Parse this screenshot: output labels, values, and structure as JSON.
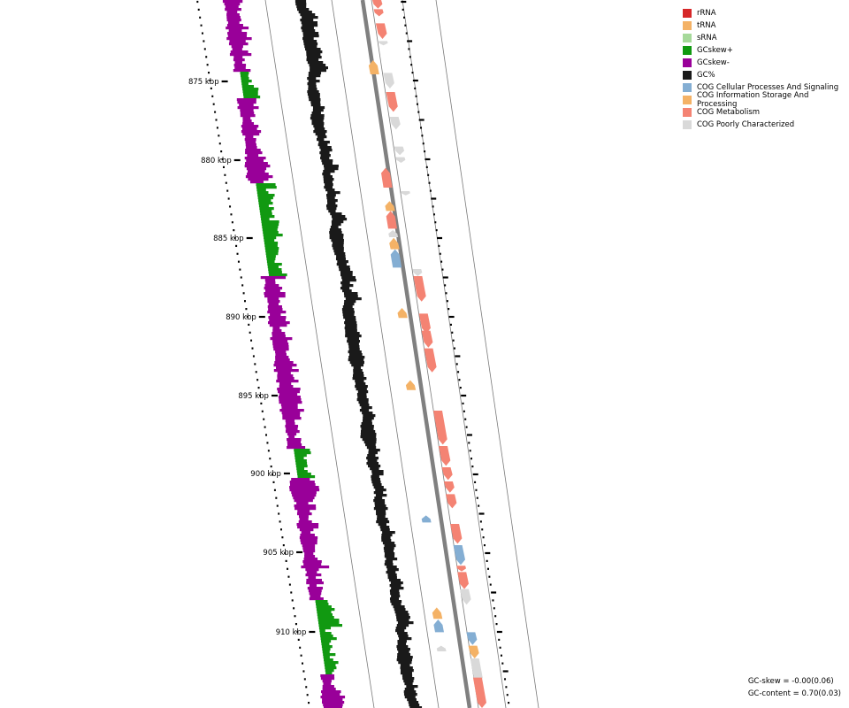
{
  "ticks": [
    "875 kbp",
    "880 kbp",
    "885 kbp",
    "890 kbp",
    "895 kbp",
    "900 kbp",
    "905 kbp",
    "910 kbp"
  ],
  "legend": [
    {
      "label": "rRNA",
      "color": "#d62728"
    },
    {
      "label": "tRNA",
      "color": "#f4b266"
    },
    {
      "label": "sRNA",
      "color": "#a6d99a"
    },
    {
      "label": "GCskew+",
      "color": "#119911"
    },
    {
      "label": "GCskew-",
      "color": "#990099"
    },
    {
      "label": "GC%",
      "color": "#1a1a1a"
    },
    {
      "label": "COG Cellular Processes And Signaling",
      "color": "#84aed3"
    },
    {
      "label": "COG Information Storage And Processing",
      "color": "#f4b266"
    },
    {
      "label": "COG Metabolism",
      "color": "#f48373"
    },
    {
      "label": "COG Poorly Characterized",
      "color": "#d9d9d9"
    }
  ],
  "stats": {
    "gc_skew": "GC-skew = -0.00(0.06)",
    "gc_content": "GC-content = 0.70(0.03)"
  },
  "features": [
    {
      "t": 0.0,
      "len": 0.012,
      "cat": "metabolism",
      "strand": 1
    },
    {
      "t": 0.013,
      "len": 0.01,
      "cat": "metabolism",
      "strand": 1
    },
    {
      "t": 0.033,
      "len": 0.022,
      "cat": "metabolism",
      "strand": 1
    },
    {
      "t": 0.058,
      "len": 0.006,
      "cat": "poor",
      "strand": 1
    },
    {
      "t": 0.085,
      "len": 0.02,
      "cat": "info",
      "strand": -1
    },
    {
      "t": 0.103,
      "len": 0.022,
      "cat": "poor",
      "strand": 1
    },
    {
      "t": 0.13,
      "len": 0.028,
      "cat": "metabolism",
      "strand": 1
    },
    {
      "t": 0.165,
      "len": 0.018,
      "cat": "poor",
      "strand": 1
    },
    {
      "t": 0.207,
      "len": 0.012,
      "cat": "poor",
      "strand": 1
    },
    {
      "t": 0.222,
      "len": 0.008,
      "cat": "poor",
      "strand": 1
    },
    {
      "t": 0.237,
      "len": 0.028,
      "cat": "metabolism",
      "strand": -1
    },
    {
      "t": 0.27,
      "len": 0.006,
      "cat": "poor",
      "strand": 1
    },
    {
      "t": 0.284,
      "len": 0.014,
      "cat": "info",
      "strand": -1
    },
    {
      "t": 0.298,
      "len": 0.025,
      "cat": "metabolism",
      "strand": -1
    },
    {
      "t": 0.325,
      "len": 0.01,
      "cat": "poor",
      "strand": -1
    },
    {
      "t": 0.336,
      "len": 0.016,
      "cat": "info",
      "strand": -1
    },
    {
      "t": 0.352,
      "len": 0.026,
      "cat": "cellular",
      "strand": -1
    },
    {
      "t": 0.38,
      "len": 0.01,
      "cat": "poor",
      "strand": 1
    },
    {
      "t": 0.39,
      "len": 0.036,
      "cat": "metabolism",
      "strand": 1
    },
    {
      "t": 0.435,
      "len": 0.014,
      "cat": "info",
      "strand": -1
    },
    {
      "t": 0.443,
      "len": 0.028,
      "cat": "metabolism",
      "strand": 1
    },
    {
      "t": 0.467,
      "len": 0.024,
      "cat": "metabolism",
      "strand": 1
    },
    {
      "t": 0.492,
      "len": 0.034,
      "cat": "metabolism",
      "strand": 1
    },
    {
      "t": 0.537,
      "len": 0.014,
      "cat": "info",
      "strand": -1
    },
    {
      "t": 0.58,
      "len": 0.048,
      "cat": "metabolism",
      "strand": 1
    },
    {
      "t": 0.63,
      "len": 0.028,
      "cat": "metabolism",
      "strand": 1
    },
    {
      "t": 0.66,
      "len": 0.018,
      "cat": "metabolism",
      "strand": 1
    },
    {
      "t": 0.68,
      "len": 0.016,
      "cat": "metabolism",
      "strand": 1
    },
    {
      "t": 0.698,
      "len": 0.02,
      "cat": "metabolism",
      "strand": 1
    },
    {
      "t": 0.728,
      "len": 0.01,
      "cat": "cellular",
      "strand": -1
    },
    {
      "t": 0.74,
      "len": 0.028,
      "cat": "metabolism",
      "strand": 1
    },
    {
      "t": 0.77,
      "len": 0.028,
      "cat": "cellular",
      "strand": 1
    },
    {
      "t": 0.799,
      "len": 0.008,
      "cat": "metabolism",
      "strand": 1
    },
    {
      "t": 0.808,
      "len": 0.024,
      "cat": "metabolism",
      "strand": 1
    },
    {
      "t": 0.832,
      "len": 0.022,
      "cat": "poor",
      "strand": 1
    },
    {
      "t": 0.858,
      "len": 0.016,
      "cat": "info",
      "strand": -1
    },
    {
      "t": 0.875,
      "len": 0.018,
      "cat": "cellular",
      "strand": -1
    },
    {
      "t": 0.893,
      "len": 0.018,
      "cat": "cellular",
      "strand": 1
    },
    {
      "t": 0.912,
      "len": 0.008,
      "cat": "poor",
      "strand": -1
    },
    {
      "t": 0.912,
      "len": 0.018,
      "cat": "info",
      "strand": 1
    },
    {
      "t": 0.93,
      "len": 0.035,
      "cat": "poor",
      "strand": 1
    },
    {
      "t": 0.957,
      "len": 0.043,
      "cat": "metabolism",
      "strand": 1
    }
  ]
}
